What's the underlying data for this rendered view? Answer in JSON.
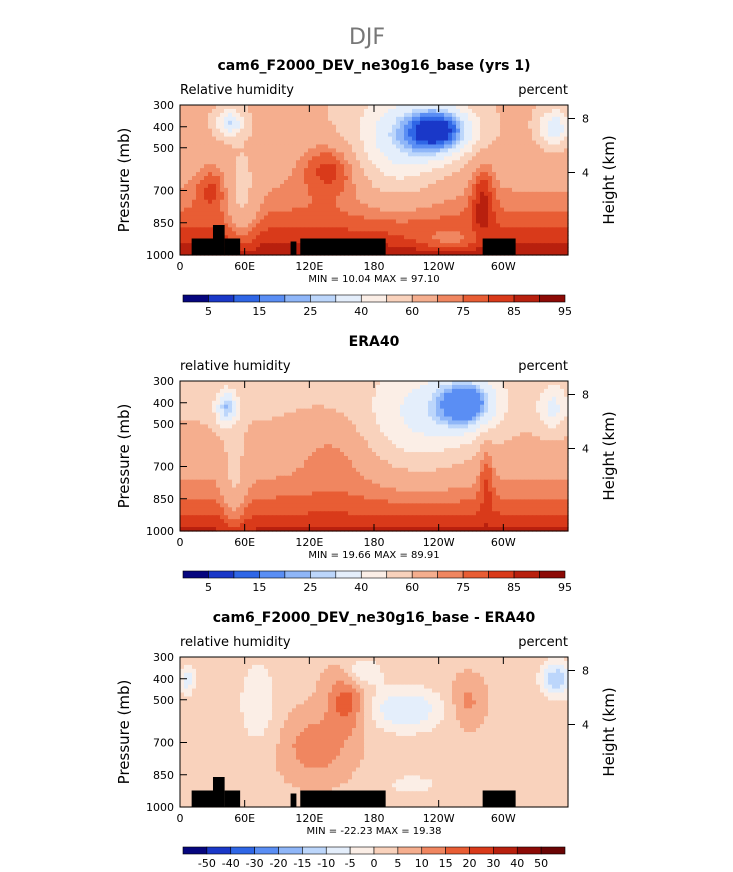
{
  "figure": {
    "title": "DJF"
  },
  "chart_data": [
    {
      "type": "heatmap",
      "title": "cam6_F2000_DEV_ne30g16_base (yrs 1)",
      "left_label": "Relative humidity",
      "right_label": "percent",
      "ylabel": "Pressure (mb)",
      "y2label": "Height (km)",
      "yticks": [
        "300",
        "400",
        "500",
        "700",
        "850",
        "1000"
      ],
      "y2ticks": [
        "8",
        "4"
      ],
      "xticks": [
        "0",
        "60E",
        "120E",
        "180",
        "120W",
        "60W"
      ],
      "stats": "MIN =   10.04   MAX =   97.10",
      "colorbar_labels": [
        "5",
        "15",
        "25",
        "40",
        "60",
        "75",
        "85",
        "95"
      ],
      "colormap": "humidity",
      "field": "model",
      "topo": true
    },
    {
      "type": "heatmap",
      "title": "ERA40",
      "left_label": "relative humidity",
      "right_label": "percent",
      "ylabel": "Pressure (mb)",
      "y2label": "Height (km)",
      "yticks": [
        "300",
        "400",
        "500",
        "700",
        "850",
        "1000"
      ],
      "y2ticks": [
        "8",
        "4"
      ],
      "xticks": [
        "0",
        "60E",
        "120E",
        "180",
        "120W",
        "60W"
      ],
      "stats": "MIN =   19.66   MAX =   89.91",
      "colorbar_labels": [
        "5",
        "15",
        "25",
        "40",
        "60",
        "75",
        "85",
        "95"
      ],
      "colormap": "humidity",
      "field": "obs",
      "topo": false
    },
    {
      "type": "heatmap",
      "title": "cam6_F2000_DEV_ne30g16_base - ERA40",
      "left_label": "relative humidity",
      "right_label": "percent",
      "ylabel": "Pressure (mb)",
      "y2label": "Height (km)",
      "yticks": [
        "300",
        "400",
        "500",
        "700",
        "850",
        "1000"
      ],
      "y2ticks": [
        "8",
        "4"
      ],
      "xticks": [
        "0",
        "60E",
        "120E",
        "180",
        "120W",
        "60W"
      ],
      "stats": "MIN =  -22.23   MAX =   19.38",
      "colorbar_labels": [
        "-50",
        "-40",
        "-30",
        "-20",
        "-15",
        "-10",
        "-5",
        "0",
        "5",
        "10",
        "15",
        "20",
        "30",
        "40",
        "50"
      ],
      "colormap": "difference",
      "field": "diff",
      "topo": true
    }
  ],
  "colormaps": {
    "humidity": [
      "#06067e",
      "#1a38c8",
      "#2f66e6",
      "#5a8ef4",
      "#8fb6f8",
      "#bcd6fb",
      "#e4eefb",
      "#fbeee6",
      "#f9d2bc",
      "#f5ae8e",
      "#f08660",
      "#e85d34",
      "#d93a1a",
      "#b8200e",
      "#8c0a06"
    ],
    "difference": [
      "#06067e",
      "#1a38c8",
      "#2f66e6",
      "#5a8ef4",
      "#8fb6f8",
      "#bcd6fb",
      "#e4eefb",
      "#fbeee6",
      "#f9d2bc",
      "#f5ae8e",
      "#f08660",
      "#e85d34",
      "#d93a1a",
      "#b8200e",
      "#8c0a06",
      "#6a0404"
    ]
  }
}
